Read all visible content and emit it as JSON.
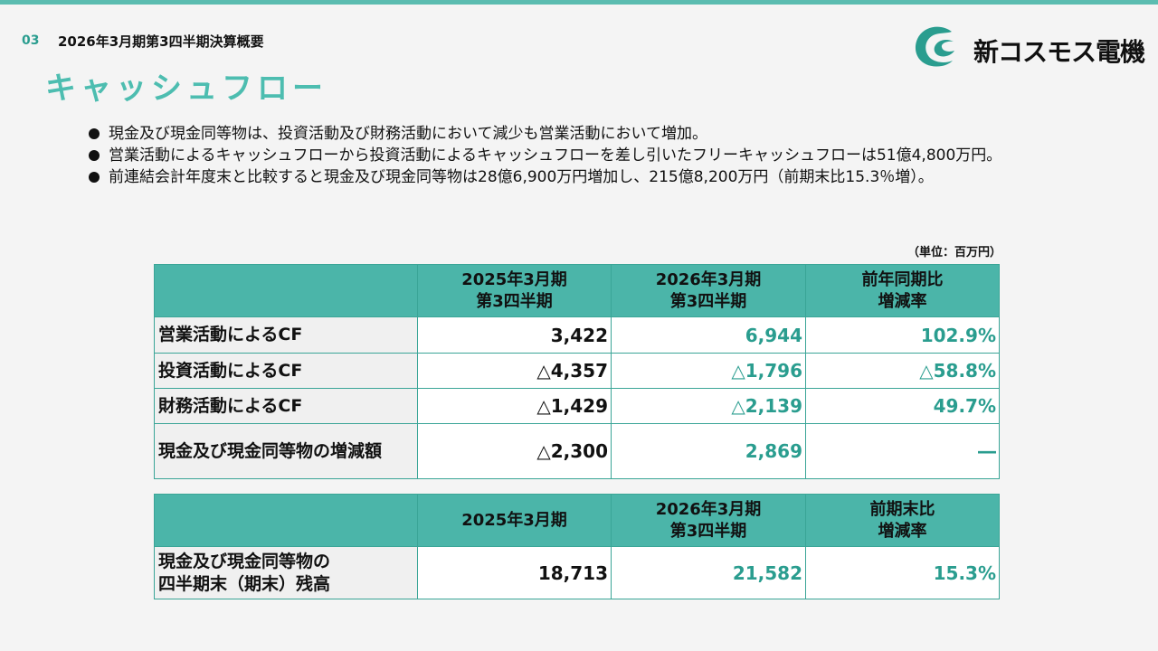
{
  "header": {
    "page_number": "03",
    "section_title": "2026年3月期第3四半期決算概要",
    "main_title": "キャッシュフロー",
    "logo_text": "新コスモス電機",
    "accent_color": "#4dbdb0"
  },
  "bullets": [
    {
      "text": "現金及び現金同等物は、投資活動及び財務活動において減少も営業活動において増加。"
    },
    {
      "text": "営業活動によるキャッシュフローから投資活動によるキャッシュフローを差し引いたフリーキャッシュフローは51億4,800万円。"
    },
    {
      "text": "前連結会計年度末と比較すると現金及び現金同等物は28億6,900万円増加し、215億8,200万円（前期末比15.3％増）。"
    }
  ],
  "unit_note": "（単位：百万円）",
  "table1": {
    "headers": [
      "",
      "2025年3月期\n第3四半期",
      "2026年3月期\n第3四半期",
      "前年同期比\n増減率"
    ],
    "rows": [
      {
        "label": "営業活動によるCF",
        "v2025": "3,422",
        "v2026": "6,944",
        "rate": "102.9%"
      },
      {
        "label": "投資活動によるCF",
        "v2025": "△4,357",
        "v2026": "△1,796",
        "rate": "△58.8%"
      },
      {
        "label": "財務活動によるCF",
        "v2025": "△1,429",
        "v2026": "△2,139",
        "rate": "49.7%"
      },
      {
        "label": "現金及び現金同等物の増減額",
        "v2025": "△2,300",
        "v2026": "2,869",
        "rate": "―"
      }
    ]
  },
  "table2": {
    "headers": [
      "",
      "2025年3月期",
      "2026年3月期\n第3四半期",
      "前期末比\n増減率"
    ],
    "rows": [
      {
        "label": "現金及び現金同等物の\n四半期末（期末）残高",
        "v2025": "18,713",
        "v2026": "21,582",
        "rate": "15.3%"
      }
    ]
  }
}
